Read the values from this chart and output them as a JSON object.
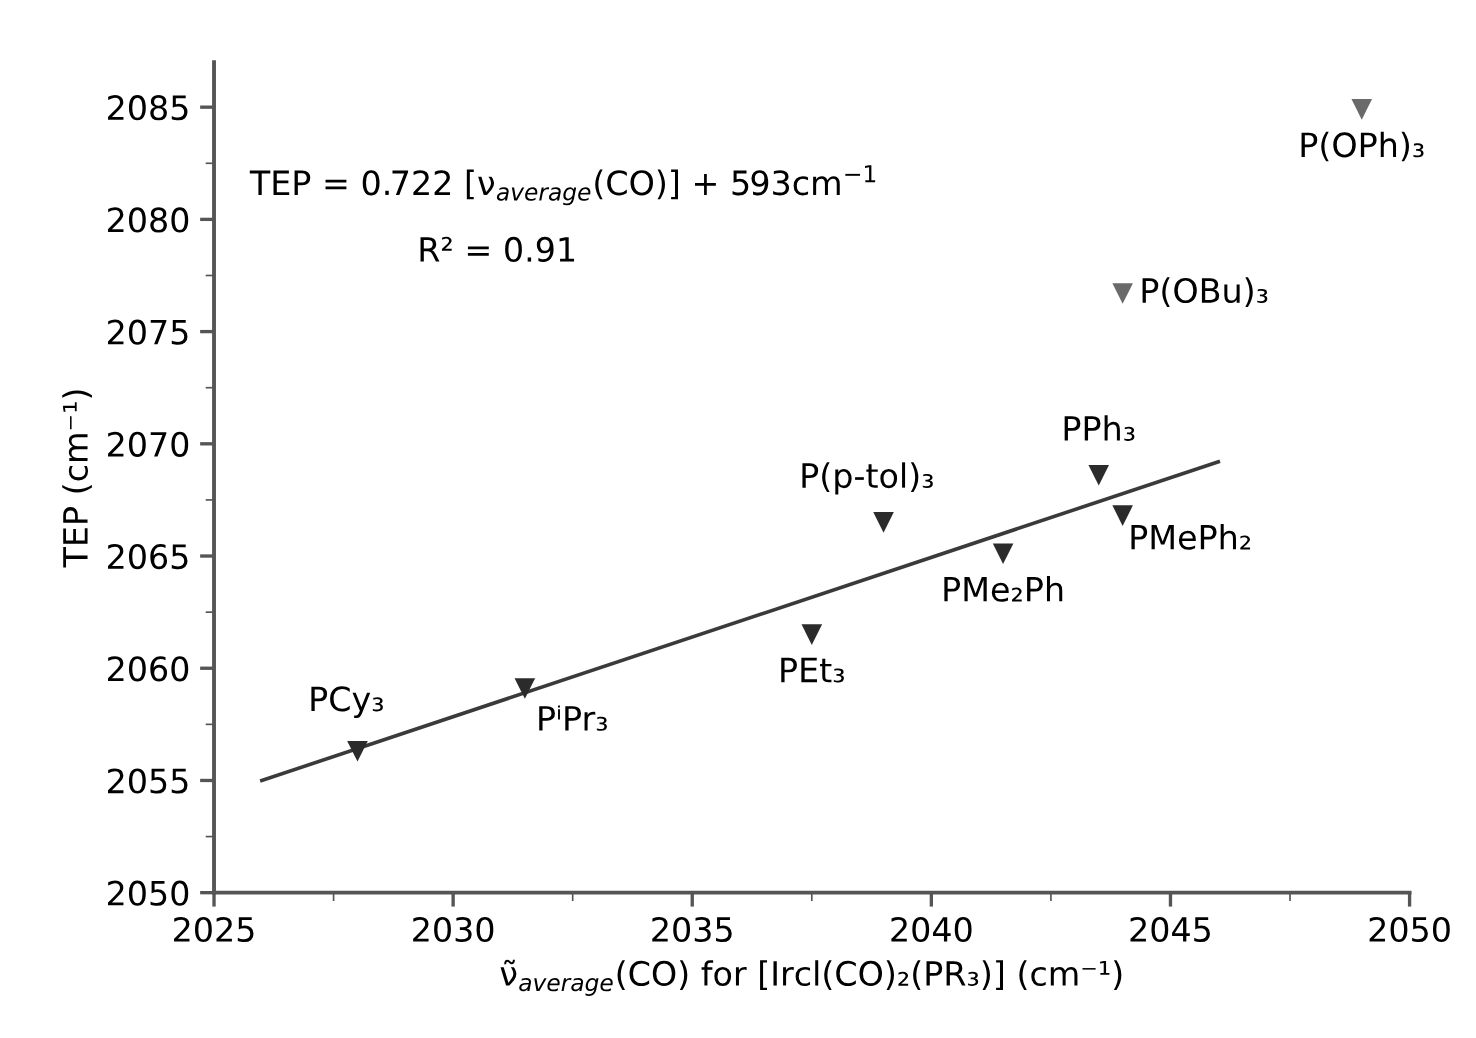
{
  "chart_data": {
    "type": "scatter",
    "xlabel": "ν̃$_{average}$(CO) for [Ircl(CO)₂(PR₃)] (cm⁻¹)",
    "ylabel": "TEP (cm⁻¹)",
    "xlim": [
      2025,
      2050
    ],
    "xticks": [
      2025,
      2030,
      2035,
      2040,
      2045,
      2050
    ],
    "ylim": [
      2050,
      2087
    ],
    "yticks": [
      2050,
      2055,
      2060,
      2065,
      2070,
      2075,
      2080,
      2085
    ],
    "grid": false,
    "marker": "triangle",
    "series": [
      {
        "x": [
          2028.0,
          2031.5,
          2037.5,
          2039.0,
          2041.5,
          2044.0,
          2043.5,
          2044.0,
          2049.0
        ],
        "values": [
          2056.3,
          2059.1,
          2061.5,
          2066.5,
          2065.1,
          2066.8,
          2068.6,
          2076.7,
          2084.9
        ],
        "colors": [
          "#2b2b2b",
          "#2b2b2b",
          "#2b2b2b",
          "#2b2b2b",
          "#2b2b2b",
          "#2b2b2b",
          "#2b2b2b",
          "#6a6a6a",
          "#6a6a6a"
        ]
      },
      {
        "type": "line",
        "x": [
          2026,
          2046
        ],
        "values": [
          2055.0,
          2069.2
        ],
        "color": "#3a3a3a",
        "line_style": "solid",
        "marker": "none"
      }
    ],
    "annotations": [
      {
        "text": "PCy₃",
        "x": 2028.0,
        "y": 2056.3
      },
      {
        "text": "PⁱPr₃",
        "x": 2031.5,
        "y": 2059.1
      },
      {
        "text": "PEt₃",
        "x": 2037.5,
        "y": 2061.5
      },
      {
        "text": "P(p-tol)₃",
        "x": 2039.0,
        "y": 2066.5
      },
      {
        "text": "PMe₂Ph",
        "x": 2041.5,
        "y": 2065.1
      },
      {
        "text": "PMePh₂",
        "x": 2044.0,
        "y": 2066.8
      },
      {
        "text": "PPh₃",
        "x": 2043.5,
        "y": 2068.6
      },
      {
        "text": "P(OBu)₃",
        "x": 2044.0,
        "y": 2076.7
      },
      {
        "text": "P(OPh)₃",
        "x": 2049.0,
        "y": 2084.9
      },
      "TEP = 0.722 [ν$_{average}$(CO)] + 593cm$^{−1}$",
      "R² = 0.91"
    ]
  }
}
